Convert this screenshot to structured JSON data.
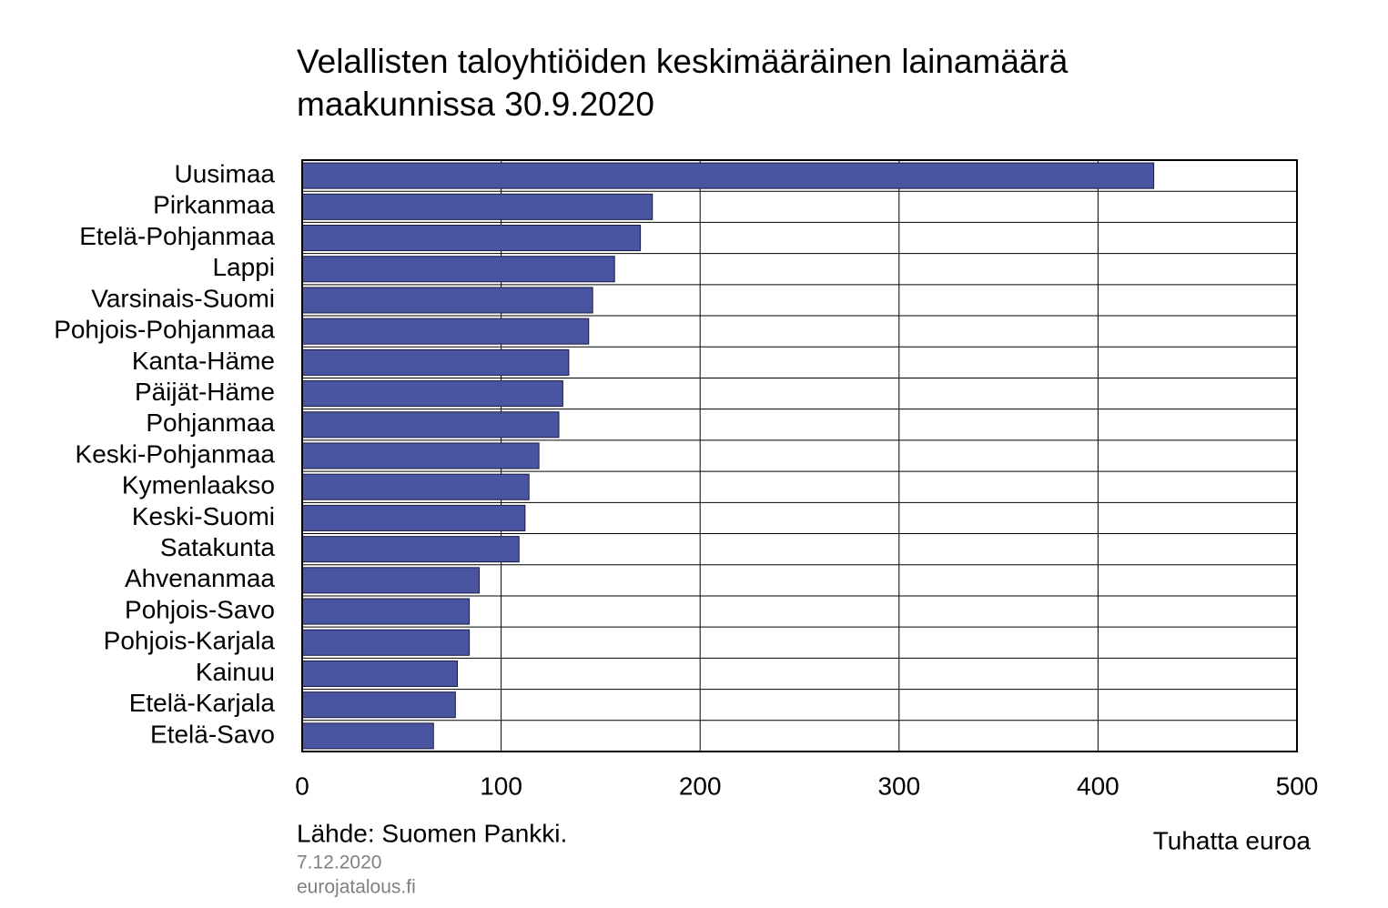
{
  "chart_data": {
    "type": "bar",
    "orientation": "horizontal",
    "title": [
      "Velallisten taloyhtiöiden keskimääräinen lainamäärä",
      "maakunnissa 30.9.2020"
    ],
    "categories": [
      "Uusimaa",
      "Pirkanmaa",
      "Etelä-Pohjanmaa",
      "Lappi",
      "Varsinais-Suomi",
      "Pohjois-Pohjanmaa",
      "Kanta-Häme",
      "Päijät-Häme",
      "Pohjanmaa",
      "Keski-Pohjanmaa",
      "Kymenlaakso",
      "Keski-Suomi",
      "Satakunta",
      "Ahvenanmaa",
      "Pohjois-Savo",
      "Pohjois-Karjala",
      "Kainuu",
      "Etelä-Karjala",
      "Etelä-Savo"
    ],
    "values": [
      428,
      176,
      170,
      157,
      146,
      144,
      134,
      131,
      129,
      119,
      114,
      112,
      109,
      89,
      84,
      84,
      78,
      77,
      66
    ],
    "color": "#4a55a2",
    "xlim": [
      0,
      500
    ],
    "xticks": [
      0,
      100,
      200,
      300,
      400,
      500
    ],
    "grid": true,
    "x_label": "Tuhatta euroa",
    "source": "Lähde:  Suomen  Pankki.",
    "date": "7.12.2020",
    "site": "eurojatalous.fi"
  }
}
